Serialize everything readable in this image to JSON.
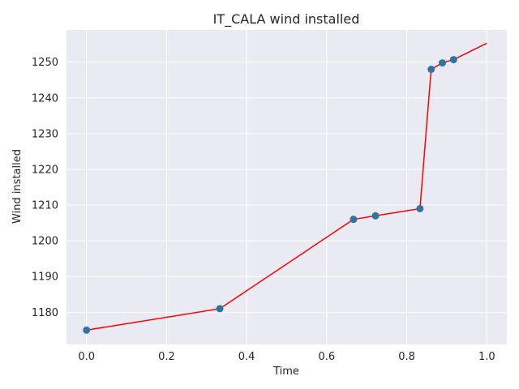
{
  "chart_data": {
    "type": "scatter",
    "title": "IT_CALA wind installed",
    "xlabel": "Time",
    "ylabel": "Wind installed",
    "xlim": [
      -0.05,
      1.05
    ],
    "ylim": [
      1171,
      1259
    ],
    "xticks": [
      0.0,
      0.2,
      0.4,
      0.6,
      0.8,
      1.0
    ],
    "xtick_labels": [
      "0.0",
      "0.2",
      "0.4",
      "0.6",
      "0.8",
      "1.0"
    ],
    "yticks": [
      1180,
      1190,
      1200,
      1210,
      1220,
      1230,
      1240,
      1250
    ],
    "ytick_labels": [
      "1180",
      "1190",
      "1200",
      "1210",
      "1220",
      "1230",
      "1240",
      "1250"
    ],
    "grid": true,
    "background": "#eaeaf2",
    "series": [
      {
        "kind": "scatter",
        "color": "#3274a1",
        "points": [
          {
            "x": 0.0,
            "y": 1175
          },
          {
            "x": 0.333,
            "y": 1181
          },
          {
            "x": 0.667,
            "y": 1206
          },
          {
            "x": 0.722,
            "y": 1207
          },
          {
            "x": 0.833,
            "y": 1209
          },
          {
            "x": 0.861,
            "y": 1248
          },
          {
            "x": 0.889,
            "y": 1249.8
          },
          {
            "x": 0.917,
            "y": 1250.7
          }
        ]
      },
      {
        "kind": "line",
        "color": "#ff0000",
        "points": [
          {
            "x": 0.0,
            "y": 1175
          },
          {
            "x": 0.333,
            "y": 1181
          },
          {
            "x": 0.667,
            "y": 1206
          },
          {
            "x": 0.722,
            "y": 1207
          },
          {
            "x": 0.833,
            "y": 1209
          },
          {
            "x": 0.861,
            "y": 1248
          },
          {
            "x": 0.889,
            "y": 1249.8
          },
          {
            "x": 0.917,
            "y": 1250.7
          },
          {
            "x": 1.0,
            "y": 1255.3
          }
        ]
      }
    ]
  }
}
